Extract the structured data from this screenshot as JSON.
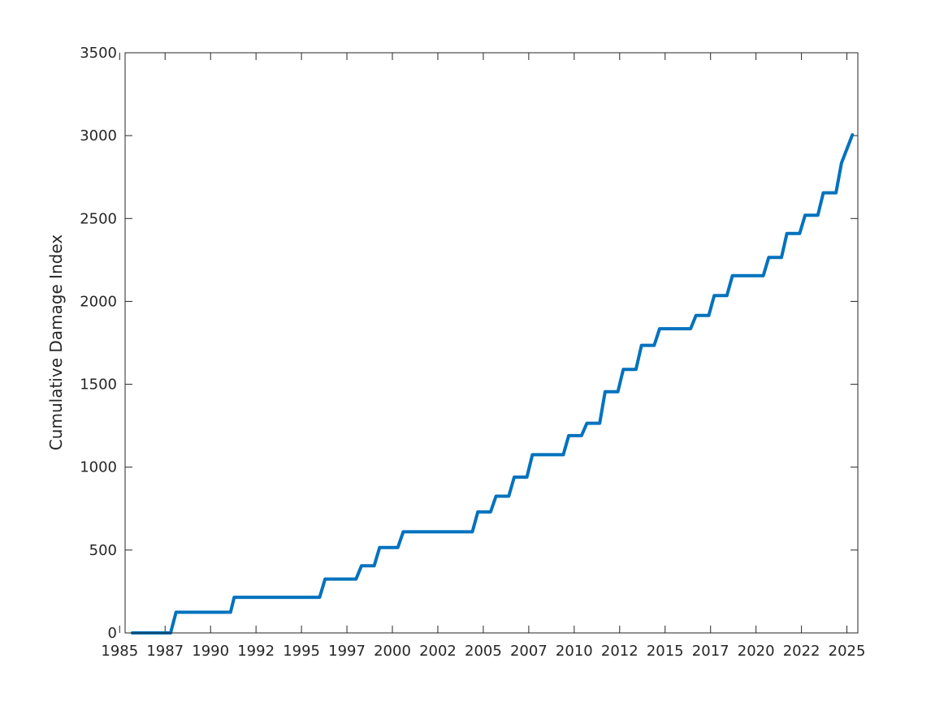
{
  "chart_data": {
    "type": "line",
    "title": "",
    "xlabel": "",
    "ylabel": "Cumulative Damage Index",
    "xlim": [
      1985.3,
      2025.6
    ],
    "ylim": [
      0,
      3500
    ],
    "grid": false,
    "box": true,
    "line_color": "#0072BD",
    "x_ticks": [
      1985,
      1987.5,
      1990,
      1992.5,
      1995,
      1997.5,
      2000,
      2002.5,
      2005,
      2007.5,
      2010,
      2012.5,
      2015,
      2017.5,
      2020,
      2022.5,
      2025
    ],
    "x_tick_labels": [
      "1985",
      "1987",
      "1990",
      "1992",
      "1995",
      "1997",
      "2000",
      "2002",
      "2005",
      "2007",
      "2010",
      "2012",
      "2015",
      "2017",
      "2020",
      "2022",
      "2025"
    ],
    "y_ticks": [
      0,
      500,
      1000,
      1500,
      2000,
      2500,
      3000,
      3500
    ],
    "y_tick_labels": [
      "0",
      "500",
      "1000",
      "1500",
      "2000",
      "2500",
      "3000",
      "3500"
    ],
    "series": [
      {
        "x": [
          1985.7,
          1987.8,
          1988.1,
          1991.1,
          1991.3,
          1996.0,
          1996.3,
          1998.0,
          1998.3,
          1999.0,
          1999.3,
          2000.3,
          2000.6,
          2004.4,
          2004.7,
          2005.4,
          2005.7,
          2006.4,
          2006.7,
          2007.4,
          2007.7,
          2009.4,
          2009.7,
          2010.4,
          2010.7,
          2011.4,
          2011.7,
          2012.4,
          2012.7,
          2013.4,
          2013.7,
          2014.4,
          2014.7,
          2015.4,
          2015.7,
          2016.4,
          2016.7,
          2017.4,
          2017.7,
          2018.4,
          2018.7,
          2020.4,
          2020.7,
          2021.4,
          2021.7,
          2022.4,
          2022.7,
          2023.4,
          2023.7,
          2024.4,
          2024.7,
          2025.3
        ],
        "y": [
          0,
          0,
          125,
          125,
          215,
          215,
          325,
          325,
          405,
          405,
          515,
          515,
          610,
          610,
          730,
          730,
          825,
          825,
          940,
          940,
          1075,
          1075,
          1190,
          1190,
          1265,
          1265,
          1455,
          1455,
          1590,
          1590,
          1735,
          1735,
          1835,
          1835,
          1835,
          1835,
          1915,
          1915,
          2035,
          2035,
          2155,
          2155,
          2265,
          2265,
          2410,
          2410,
          2520,
          2520,
          2655,
          2655,
          2835,
          3005
        ]
      }
    ]
  }
}
